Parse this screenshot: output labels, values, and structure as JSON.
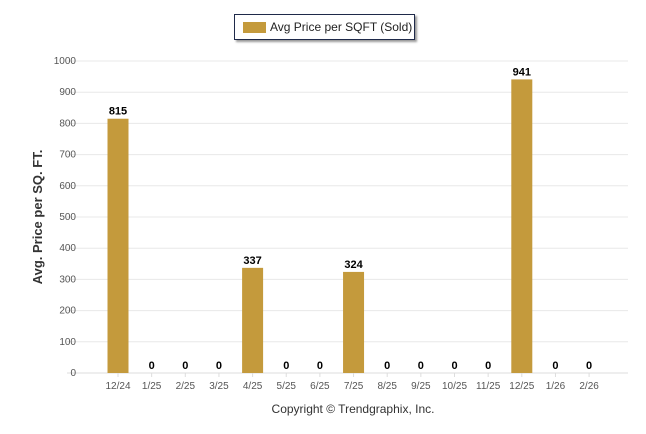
{
  "chart_data": {
    "type": "bar",
    "legend": [
      "Avg Price per SQFT (Sold)"
    ],
    "legend_position": "top-center",
    "categories": [
      "12/24",
      "1/25",
      "2/25",
      "3/25",
      "4/25",
      "5/25",
      "6/25",
      "7/25",
      "8/25",
      "9/25",
      "10/25",
      "11/25",
      "12/25",
      "1/26",
      "2/26"
    ],
    "series": [
      {
        "name": "Avg Price per SQFT (Sold)",
        "values": [
          815,
          0,
          0,
          0,
          337,
          0,
          0,
          324,
          0,
          0,
          0,
          0,
          941,
          0,
          0
        ],
        "color": "#c49a3c"
      }
    ],
    "ylabel": "Avg. Price per SQ. FT.",
    "xlabel": "",
    "ylim": [
      0,
      1000
    ],
    "yticks": [
      0,
      100,
      200,
      300,
      400,
      500,
      600,
      700,
      800,
      900,
      1000
    ],
    "grid": true,
    "footer": "Copyright © Trendgraphix, Inc."
  }
}
